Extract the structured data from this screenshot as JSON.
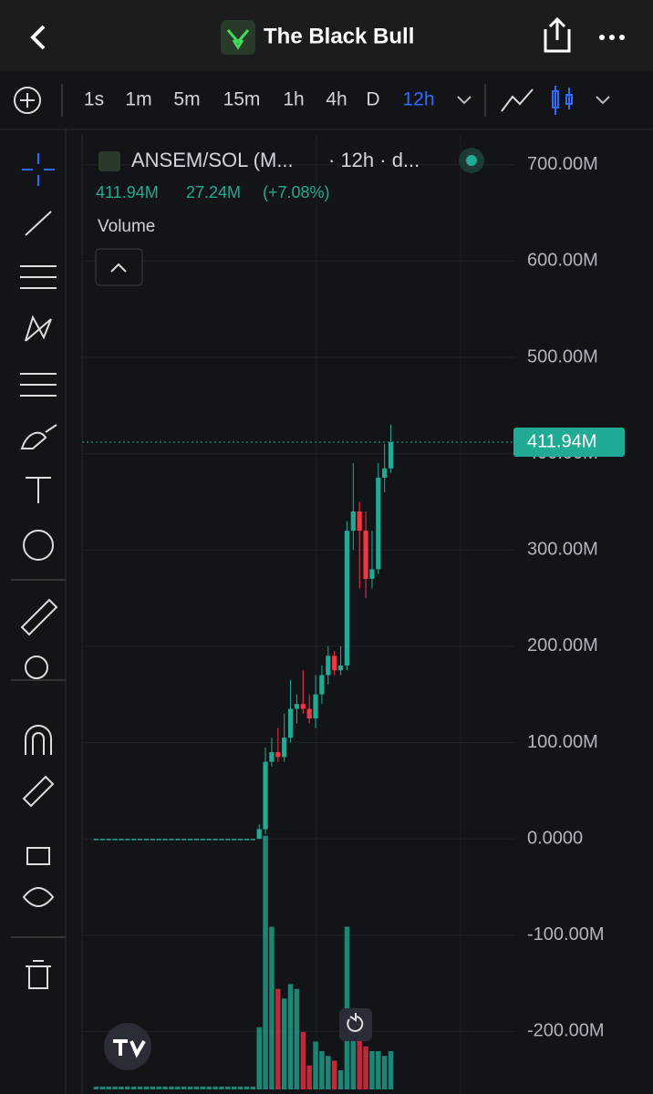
{
  "header": {
    "title": "The Black Bull"
  },
  "toolbar": {
    "intervals": [
      "1s",
      "1m",
      "5m",
      "15m",
      "1h",
      "4h",
      "D",
      "12h"
    ],
    "active": "12h"
  },
  "chart_data": {
    "type": "candlestick",
    "symbol": "ANSEM/SOL (M...",
    "interval_text": "· 12h · d...",
    "legend_price": "411.94M",
    "legend_change": "27.24M",
    "legend_percent": "(+7.08%)",
    "volume_label": "Volume",
    "up_color": "#22ab94",
    "down_color": "#f23645",
    "categories": [
      null,
      null,
      null,
      null,
      null,
      null,
      null,
      null,
      null,
      null,
      null,
      null,
      null,
      null,
      null,
      null,
      null,
      null,
      null,
      null,
      null,
      null,
      null,
      null,
      null,
      null,
      null,
      null,
      null,
      null,
      null,
      null,
      null,
      null,
      null,
      null,
      null,
      null,
      null,
      null,
      null,
      null,
      null,
      null,
      null,
      null,
      null,
      null
    ],
    "open": [
      0,
      0,
      0,
      0,
      0,
      0,
      0,
      0,
      0,
      0,
      0,
      0,
      0,
      0,
      0,
      0,
      0,
      0,
      0,
      0,
      0,
      0,
      0,
      0,
      0,
      0,
      0,
      10000000,
      80000000,
      90000000,
      85000000,
      105000000,
      135000000,
      140000000,
      135000000,
      125000000,
      150000000,
      170000000,
      190000000,
      175000000,
      180000000,
      320000000,
      340000000,
      320000000,
      270000000,
      280000000,
      375000000,
      384700000
    ],
    "high": [
      0,
      0,
      0,
      0,
      0,
      0,
      0,
      0,
      0,
      0,
      0,
      0,
      0,
      0,
      0,
      0,
      0,
      0,
      0,
      0,
      0,
      0,
      0,
      0,
      0,
      0,
      15000000,
      95000000,
      105000000,
      115000000,
      130000000,
      165000000,
      150000000,
      175000000,
      150000000,
      170000000,
      180000000,
      200000000,
      195000000,
      200000000,
      330000000,
      390000000,
      350000000,
      340000000,
      320000000,
      390000000,
      410000000,
      430000000
    ],
    "low": [
      0,
      0,
      0,
      0,
      0,
      0,
      0,
      0,
      0,
      0,
      0,
      0,
      0,
      0,
      0,
      0,
      0,
      0,
      0,
      0,
      0,
      0,
      0,
      0,
      0,
      0,
      0,
      5000000,
      75000000,
      80000000,
      80000000,
      100000000,
      120000000,
      130000000,
      120000000,
      115000000,
      140000000,
      160000000,
      170000000,
      170000000,
      175000000,
      300000000,
      260000000,
      250000000,
      260000000,
      275000000,
      360000000,
      380000000
    ],
    "close": [
      0,
      0,
      0,
      0,
      0,
      0,
      0,
      0,
      0,
      0,
      0,
      0,
      0,
      0,
      0,
      0,
      0,
      0,
      0,
      0,
      0,
      0,
      0,
      0,
      0,
      0,
      10000000,
      80000000,
      90000000,
      85000000,
      105000000,
      135000000,
      140000000,
      135000000,
      125000000,
      150000000,
      170000000,
      190000000,
      175000000,
      180000000,
      320000000,
      340000000,
      320000000,
      270000000,
      280000000,
      375000000,
      384700000,
      411940000
    ],
    "ylim": [
      -265000000,
      731000000
    ],
    "yticks": [
      {
        "value": 700000000,
        "label": "700.00M"
      },
      {
        "value": 600000000,
        "label": "600.00M"
      },
      {
        "value": 500000000,
        "label": "500.00M"
      },
      {
        "value": 400000000,
        "label": "400.00M"
      },
      {
        "value": 300000000,
        "label": "300.00M"
      },
      {
        "value": 200000000,
        "label": "200.00M"
      },
      {
        "value": 100000000,
        "label": "100.00M"
      },
      {
        "value": 0,
        "label": "0.0000"
      },
      {
        "value": -100000000,
        "label": "-100.00M"
      },
      {
        "value": -200000000,
        "label": "-200.00M"
      }
    ],
    "last_price": {
      "value": 411940000,
      "label": "411.94M"
    },
    "volume": [
      3,
      3,
      3,
      3,
      3,
      3,
      3,
      3,
      3,
      3,
      3,
      3,
      3,
      3,
      3,
      3,
      3,
      3,
      3,
      3,
      3,
      3,
      3,
      3,
      3,
      3,
      65,
      265,
      170,
      105,
      95,
      110,
      105,
      60,
      25,
      50,
      40,
      35,
      30,
      20,
      170,
      85,
      60,
      45,
      40,
      40,
      35,
      40
    ],
    "y2lim": [
      0,
      300
    ],
    "grid": true
  }
}
